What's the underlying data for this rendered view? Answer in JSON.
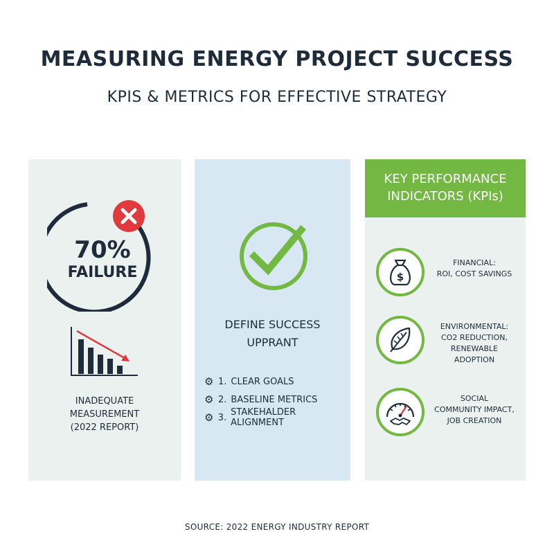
{
  "header": {
    "title": "MEASURING ENERGY PROJECT SUCCESS",
    "subtitle": "KPIS & METRICS FOR EFFECTIVE STRATEGY"
  },
  "left_panel": {
    "stat_value": "70%",
    "stat_label": "FAILURE",
    "caption_lines": [
      "INADEQUATE",
      "MEASUREMENT",
      "(2022 REPORT)"
    ],
    "icons": [
      "x-badge-icon",
      "declining-bar-chart-icon"
    ],
    "colors": {
      "ring": "#1e2b3a",
      "badge": "#e0393e",
      "trend_arrow": "#e0393e"
    }
  },
  "middle_panel": {
    "heading_lines": [
      "DEFINE SUCCESS",
      "UPPRANT"
    ],
    "steps": [
      {
        "number": "1.",
        "label": "CLEAR GOALS"
      },
      {
        "number": "2.",
        "label": "BASELINE METRICS"
      },
      {
        "number": "3.",
        "label": "STAKEHALDER ALIGNMENT"
      }
    ],
    "icons": [
      "checkmark-icon",
      "gear-icon"
    ],
    "colors": {
      "check": "#72b843",
      "background": "#d7e8f3"
    }
  },
  "right_panel": {
    "header_lines": [
      "KEY PERFORMANCE",
      "INDICATORS (KPIs)"
    ],
    "kpis": [
      {
        "icon": "money-bag-icon",
        "lines": [
          "FINANCIAL:",
          "ROI, COST SAVINGS"
        ]
      },
      {
        "icon": "leaf-icon",
        "lines": [
          "ENVIRONMENTAL:",
          "CO2 REDUCTION,",
          "RENEWABLE ADOPTION"
        ]
      },
      {
        "icon": "gauge-handshake-icon",
        "lines": [
          "SOCIAL",
          "COMMUNITY IMPACT,",
          "JOB CREATION"
        ]
      }
    ],
    "colors": {
      "accent": "#72b843"
    }
  },
  "footer": {
    "source": "SOURCE: 2022 ENERGY INDUSTRY REPORT"
  }
}
